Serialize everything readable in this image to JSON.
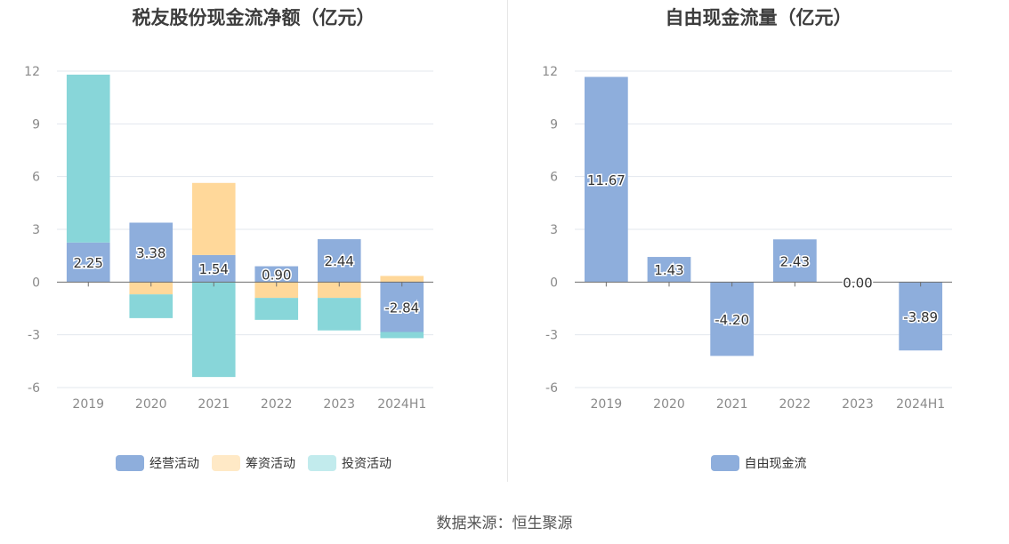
{
  "chart_data": [
    {
      "type": "bar",
      "stacked": true,
      "title": "税友股份现金流净额（亿元）",
      "categories": [
        "2019",
        "2020",
        "2021",
        "2022",
        "2023",
        "2024H1"
      ],
      "ylim": [
        -6,
        12
      ],
      "yticks": [
        12,
        9,
        6,
        3,
        0,
        -3,
        -6
      ],
      "grid": true,
      "legend_position": "bottom",
      "series": [
        {
          "name": "经营活动",
          "color": "#8eaedc",
          "values": [
            2.25,
            3.38,
            1.54,
            0.9,
            2.44,
            -2.84
          ],
          "labels": [
            "2.25",
            "3.38",
            "1.54",
            "0.90",
            "2.44",
            "-2.84"
          ]
        },
        {
          "name": "筹资活动",
          "color": "#ffd89a",
          "values": [
            0,
            -0.7,
            4.1,
            -0.9,
            -0.9,
            0.35
          ]
        },
        {
          "name": "投资活动",
          "color": "#88d6d9",
          "values": [
            9.55,
            -1.35,
            -5.4,
            -1.25,
            -1.85,
            -0.35
          ]
        }
      ],
      "legend_colors": [
        "#8eaedc",
        "#ffe9c6",
        "#c2ebed"
      ]
    },
    {
      "type": "bar",
      "title": "自由现金流量（亿元）",
      "categories": [
        "2019",
        "2020",
        "2021",
        "2022",
        "2023",
        "2024H1"
      ],
      "ylim": [
        -6,
        12
      ],
      "yticks": [
        12,
        9,
        6,
        3,
        0,
        -3,
        -6
      ],
      "grid": true,
      "legend_position": "bottom",
      "series": [
        {
          "name": "自由现金流",
          "color": "#8eaedc",
          "values": [
            11.67,
            1.43,
            -4.2,
            2.43,
            0.0,
            -3.89
          ],
          "labels": [
            "11.67",
            "1.43",
            "-4.20",
            "2.43",
            "0.00",
            "-3.89"
          ]
        }
      ],
      "legend_colors": [
        "#8eaedc"
      ]
    }
  ],
  "footer": {
    "source": "数据来源：恒生聚源"
  }
}
